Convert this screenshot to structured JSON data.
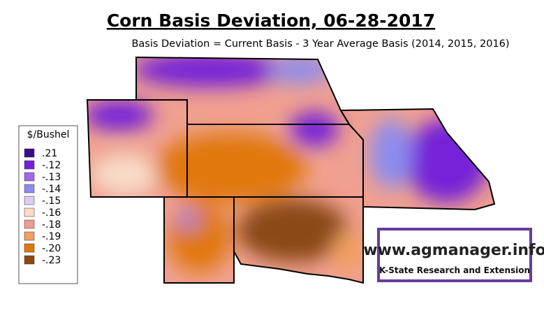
{
  "header": {
    "title": "Corn Basis Deviation, 06-28-2017",
    "subtitle": "Basis Deviation = Current Basis - 3 Year Average Basis (2014, 2015, 2016)"
  },
  "legend": {
    "title": "$/Bushel",
    "items": [
      {
        "label": ".21",
        "color": "#3c0c8a"
      },
      {
        "label": "-.12",
        "color": "#7420d8"
      },
      {
        "label": "-.13",
        "color": "#a266e6"
      },
      {
        "label": "-.14",
        "color": "#8c8cee"
      },
      {
        "label": "-.15",
        "color": "#dcccf4"
      },
      {
        "label": "-.16",
        "color": "#f8dcc8"
      },
      {
        "label": "-.18",
        "color": "#f09c90"
      },
      {
        "label": "-.19",
        "color": "#f0a060"
      },
      {
        "label": "-.20",
        "color": "#e0780c"
      },
      {
        "label": "-.23",
        "color": "#8a4812"
      }
    ]
  },
  "logo": {
    "url": "www.agmanager.info",
    "org": "K-State Research and Extension"
  }
}
